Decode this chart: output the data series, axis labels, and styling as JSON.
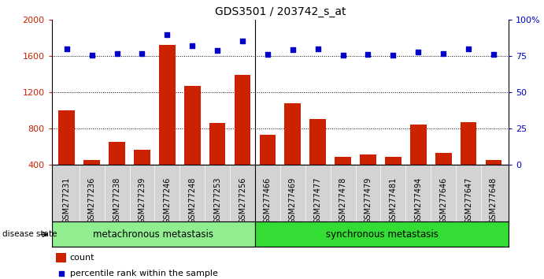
{
  "title": "GDS3501 / 203742_s_at",
  "samples": [
    "GSM277231",
    "GSM277236",
    "GSM277238",
    "GSM277239",
    "GSM277246",
    "GSM277248",
    "GSM277253",
    "GSM277256",
    "GSM277466",
    "GSM277469",
    "GSM277477",
    "GSM277478",
    "GSM277479",
    "GSM277481",
    "GSM277494",
    "GSM277646",
    "GSM277647",
    "GSM277648"
  ],
  "counts": [
    1000,
    450,
    650,
    560,
    1720,
    1270,
    860,
    1390,
    730,
    1080,
    900,
    490,
    510,
    490,
    840,
    530,
    870,
    455
  ],
  "percentile_values": [
    1680,
    1610,
    1625,
    1625,
    1830,
    1710,
    1655,
    1760,
    1615,
    1665,
    1680,
    1610,
    1615,
    1610,
    1645,
    1625,
    1680,
    1615
  ],
  "group1_label": "metachronous metastasis",
  "group2_label": "synchronous metastasis",
  "group1_color": "#90EE90",
  "group2_color": "#33DD33",
  "group_split": 8,
  "bar_color": "#CC2200",
  "dot_color": "#0000CC",
  "ylim": [
    400,
    2000
  ],
  "yticks_left": [
    400,
    800,
    1200,
    1600,
    2000
  ],
  "right_tick_labels": [
    "0",
    "25",
    "50",
    "75",
    "100%"
  ],
  "grid_values": [
    800,
    1200,
    1600
  ],
  "xtick_bg": "#D3D3D3",
  "disease_state_label": "disease state",
  "legend_count": "count",
  "legend_pct": "percentile rank within the sample"
}
